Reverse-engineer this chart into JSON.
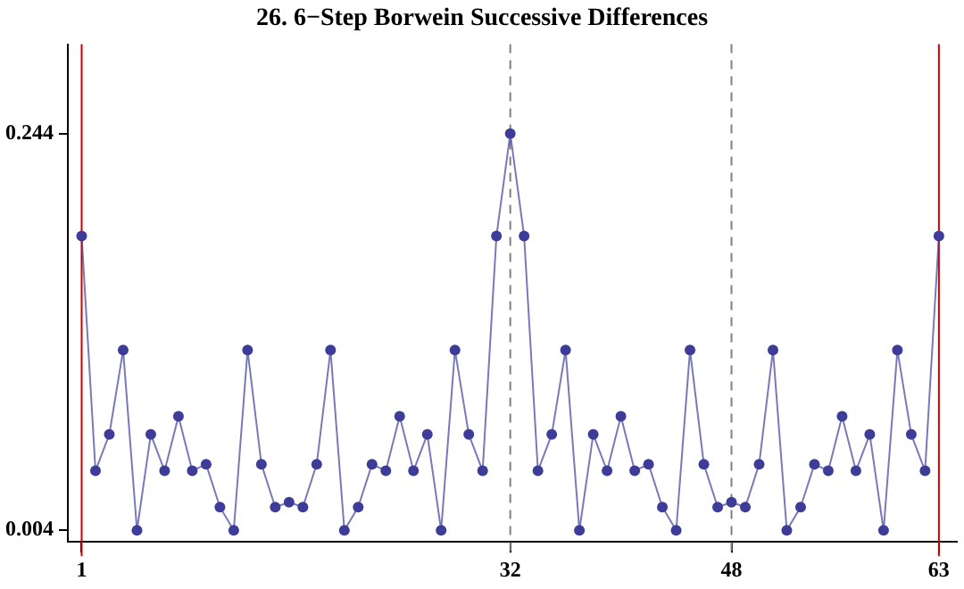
{
  "chart_data": {
    "type": "line",
    "title": "26. 6−Step Borwein Successive Differences",
    "x": [
      1,
      2,
      3,
      4,
      5,
      6,
      7,
      8,
      9,
      10,
      11,
      12,
      13,
      14,
      15,
      16,
      17,
      18,
      19,
      20,
      21,
      22,
      23,
      24,
      25,
      26,
      27,
      28,
      29,
      30,
      31,
      32,
      33,
      34,
      35,
      36,
      37,
      38,
      39,
      40,
      41,
      42,
      43,
      44,
      45,
      46,
      47,
      48,
      49,
      50,
      51,
      52,
      53,
      54,
      55,
      56,
      57,
      58,
      59,
      60,
      61,
      62,
      63
    ],
    "series": [
      {
        "color": "#3d3d99",
        "values": [
          0.182,
          0.04,
          0.062,
          0.113,
          0.004,
          0.062,
          0.04,
          0.073,
          0.04,
          0.044,
          0.018,
          0.004,
          0.113,
          0.044,
          0.018,
          0.021,
          0.018,
          0.044,
          0.113,
          0.004,
          0.018,
          0.044,
          0.04,
          0.073,
          0.04,
          0.062,
          0.004,
          0.113,
          0.062,
          0.04,
          0.182,
          0.244,
          0.182,
          0.04,
          0.062,
          0.113,
          0.004,
          0.062,
          0.04,
          0.073,
          0.04,
          0.044,
          0.018,
          0.004,
          0.113,
          0.044,
          0.018,
          0.021,
          0.018,
          0.044,
          0.113,
          0.004,
          0.018,
          0.044,
          0.04,
          0.073,
          0.04,
          0.062,
          0.004,
          0.113,
          0.062,
          0.04,
          0.182
        ]
      }
    ],
    "xlim": [
      0,
      64.3
    ],
    "xticks": [
      1,
      32,
      48,
      63
    ],
    "ylim": [
      -0.003,
      0.298
    ],
    "yticks": [
      0.004,
      0.244
    ],
    "ref_lines": [
      {
        "axis": "x",
        "value": 1,
        "label": null,
        "color": "#cc0000",
        "line_style": "solid"
      },
      {
        "axis": "x",
        "value": 63,
        "label": null,
        "color": "#cc0000",
        "line_style": "solid"
      },
      {
        "axis": "x",
        "value": 32,
        "label": null,
        "color": "#808080",
        "line_style": "dashed"
      },
      {
        "axis": "x",
        "value": 48,
        "label": null,
        "color": "#808080",
        "line_style": "dashed"
      }
    ],
    "grid": false,
    "legend": false,
    "marker": "circle",
    "line_style": "solid"
  }
}
